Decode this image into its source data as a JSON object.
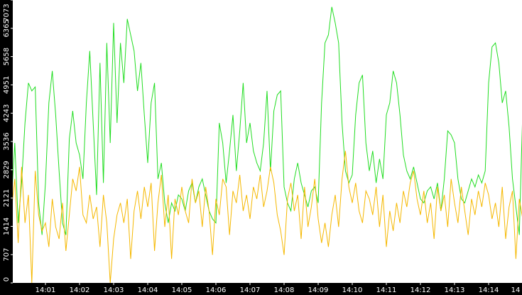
{
  "chart_data": {
    "type": "line",
    "categories": [
      null,
      null,
      null,
      null,
      null,
      null,
      null,
      null,
      null,
      null,
      "14:01",
      null,
      null,
      null,
      null,
      null,
      null,
      null,
      null,
      null,
      "14:02",
      null,
      null,
      null,
      null,
      null,
      null,
      null,
      null,
      null,
      "14:03",
      null,
      null,
      null,
      null,
      null,
      null,
      null,
      null,
      null,
      "14:04",
      null,
      null,
      null,
      null,
      null,
      null,
      null,
      null,
      null,
      "14:05",
      null,
      null,
      null,
      null,
      null,
      null,
      null,
      null,
      null,
      "14:06",
      null,
      null,
      null,
      null,
      null,
      null,
      null,
      null,
      null,
      "14:07",
      null,
      null,
      null,
      null,
      null,
      null,
      null,
      null,
      null,
      "14:08",
      null,
      null,
      null,
      null,
      null,
      null,
      null,
      null,
      null,
      "14:09",
      null,
      null,
      null,
      null,
      null,
      null,
      null,
      null,
      null,
      "14:10",
      null,
      null,
      null,
      null,
      null,
      null,
      null,
      null,
      null,
      "14:11",
      null,
      null,
      null,
      null,
      null,
      null,
      null,
      null,
      null,
      "14:12",
      null,
      null,
      null,
      null,
      null,
      null,
      null,
      null,
      null,
      "14:13",
      null,
      null,
      null,
      null,
      null,
      null,
      null,
      null,
      null,
      "14:14",
      null,
      null,
      null,
      null,
      null,
      null,
      null,
      null,
      null,
      "14"
    ],
    "series": [
      {
        "color": "#22dd22",
        "values": [
          2000,
          3500,
          1500,
          2500,
          4000,
          5000,
          4800,
          4900,
          2000,
          1200,
          2500,
          4500,
          5300,
          4200,
          2800,
          1500,
          1200,
          3600,
          4300,
          3500,
          3200,
          2600,
          4500,
          5800,
          4000,
          2200,
          5500,
          2500,
          6000,
          3500,
          6500,
          4000,
          6000,
          5000,
          6600,
          6200,
          5800,
          4800,
          5500,
          4200,
          3000,
          4500,
          5000,
          2600,
          3000,
          2000,
          1500,
          2000,
          1800,
          2200,
          2100,
          1800,
          2300,
          2500,
          2000,
          2400,
          2600,
          2200,
          1800,
          1600,
          1500,
          4000,
          3500,
          2500,
          3300,
          4200,
          2800,
          3800,
          5000,
          3500,
          4000,
          3300,
          3000,
          2800,
          3500,
          4800,
          2800,
          4300,
          4700,
          4800,
          2400,
          2000,
          1800,
          2600,
          3000,
          2500,
          2200,
          1900,
          2300,
          2400,
          2000,
          4500,
          6000,
          6200,
          6900,
          6500,
          6000,
          4000,
          2800,
          2500,
          2700,
          4200,
          5000,
          5200,
          3500,
          2800,
          3300,
          2500,
          3100,
          2600,
          4200,
          4500,
          5300,
          5000,
          4200,
          3200,
          2800,
          2600,
          2900,
          2500,
          2100,
          2000,
          2300,
          2400,
          2100,
          2500,
          1800,
          2600,
          3800,
          3700,
          3500,
          2600,
          2100,
          2000,
          2300,
          2600,
          2400,
          2700,
          2500,
          2800,
          5000,
          5900,
          6000,
          5500,
          4500,
          4800,
          3900,
          2600,
          1900,
          1200,
          4300
        ]
      },
      {
        "color": "#f5b800",
        "values": [
          1800,
          2600,
          1000,
          2900,
          1500,
          2200,
          0,
          2800,
          1700,
          1300,
          1500,
          900,
          2100,
          1400,
          1100,
          2000,
          800,
          1700,
          2600,
          2300,
          2900,
          1700,
          1500,
          2200,
          1600,
          1900,
          900,
          2200,
          1500,
          0,
          1100,
          1700,
          2000,
          1500,
          2100,
          600,
          1800,
          2300,
          1600,
          2400,
          1900,
          2500,
          800,
          2000,
          2700,
          1400,
          2200,
          600,
          2100,
          1700,
          2400,
          1800,
          1500,
          2600,
          2000,
          2300,
          1400,
          2400,
          1800,
          700,
          2100,
          1700,
          2600,
          2400,
          1200,
          2300,
          2000,
          2700,
          1800,
          2200,
          1600,
          2400,
          2100,
          2700,
          1900,
          2300,
          2900,
          2500,
          1700,
          1300,
          700,
          2100,
          2500,
          1800,
          2200,
          1100,
          2400,
          1400,
          1900,
          2600,
          1600,
          1000,
          1500,
          900,
          1700,
          2200,
          1400,
          2600,
          3300,
          2400,
          2000,
          2500,
          1800,
          1500,
          2300,
          2100,
          1700,
          2400,
          1400,
          2200,
          900,
          1800,
          1300,
          2000,
          1500,
          2300,
          1900,
          2500,
          2800,
          2100,
          1700,
          2300,
          1500,
          2000,
          1100,
          2400,
          1800,
          2200,
          1400,
          2600,
          2000,
          1500,
          2400,
          1800,
          1200,
          2100,
          1700,
          2300,
          1900,
          2500,
          2200,
          1600,
          2000,
          1400,
          2400,
          1100,
          1900,
          2300,
          600,
          2100,
          1600
        ]
      }
    ],
    "ylim": [
      0,
      7073
    ],
    "yticks": [
      0,
      707,
      1414,
      2121,
      2829,
      3536,
      4243,
      4951,
      5658,
      6365,
      7073
    ],
    "grid": false
  }
}
